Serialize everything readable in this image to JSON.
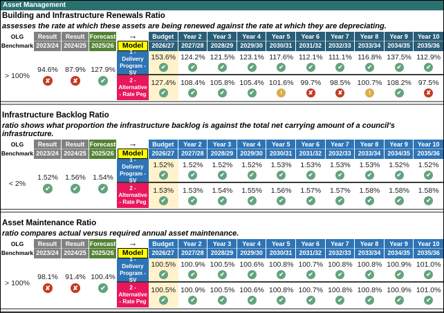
{
  "report": {
    "title": "Asset Management"
  },
  "olg_header": {
    "line1": "OLG",
    "line2": "Benchmark"
  },
  "columns": [
    {
      "label": "Result",
      "year": "2023/24",
      "type": "gray"
    },
    {
      "label": "Result",
      "year": "2024/25",
      "type": "gray"
    },
    {
      "label": "Forecast",
      "year": "2025/26",
      "type": "green"
    },
    {
      "label": "→",
      "year": "Model",
      "type": "model"
    },
    {
      "label": "Budget",
      "year": "2026/27",
      "type": "budget"
    },
    {
      "label": "Year 2",
      "year": "2027/28",
      "type": "year"
    },
    {
      "label": "Year 3",
      "year": "2028/29",
      "type": "year"
    },
    {
      "label": "Year 4",
      "year": "2029/30",
      "type": "year"
    },
    {
      "label": "Year 5",
      "year": "2030/31",
      "type": "year"
    },
    {
      "label": "Year 6",
      "year": "2031/32",
      "type": "year"
    },
    {
      "label": "Year 7",
      "year": "2032/33",
      "type": "year"
    },
    {
      "label": "Year 8",
      "year": "2033/34",
      "type": "year"
    },
    {
      "label": "Year 9",
      "year": "2034/35",
      "type": "year"
    },
    {
      "label": "Year 10",
      "year": "2035/36",
      "type": "year"
    }
  ],
  "icons": {
    "pass": "✔",
    "fail": "✘",
    "warn": "!",
    "arrow": "→"
  },
  "colors": {
    "title_bar": "#2B7170",
    "header_teal": "#2A5E78",
    "header_blue": "#2E74B5",
    "header_gray": "#808080",
    "header_green": "#548235",
    "model_yellow": "#FFFF00",
    "budget_cream": "#FFF2CC",
    "row_blue": "#2E74B5",
    "row_pink": "#E8175D",
    "pass": "#63A37F",
    "fail": "#C33B22",
    "warn": "#DBAD49"
  },
  "sections": [
    {
      "title": "Building and Infrastructure Renewals Ratio",
      "description": "assesses the rate at which these assets are being renewed against the rate at which they are depreciating.",
      "header_theme": "teal",
      "benchmark": "> 100%",
      "actuals": [
        {
          "value": "94.6%",
          "status": "fail"
        },
        {
          "value": "87.9%",
          "status": "fail"
        },
        {
          "value": "127.9%",
          "status": "pass"
        }
      ],
      "rows": [
        {
          "label": "1 - Delivery Program - SV",
          "color": "blue",
          "values": [
            {
              "value": "153.6%",
              "status": "pass"
            },
            {
              "value": "124.2%",
              "status": "pass"
            },
            {
              "value": "121.5%",
              "status": "pass"
            },
            {
              "value": "123.1%",
              "status": "pass"
            },
            {
              "value": "117.6%",
              "status": "pass"
            },
            {
              "value": "112.1%",
              "status": "pass"
            },
            {
              "value": "111.1%",
              "status": "pass"
            },
            {
              "value": "116.8%",
              "status": "pass"
            },
            {
              "value": "137.5%",
              "status": "pass"
            },
            {
              "value": "112.9%",
              "status": "pass"
            }
          ]
        },
        {
          "label": "2 - Alternative - Rate Peg",
          "color": "pink",
          "values": [
            {
              "value": "127.4%",
              "status": "pass"
            },
            {
              "value": "108.4%",
              "status": "pass"
            },
            {
              "value": "105.8%",
              "status": "pass"
            },
            {
              "value": "105.4%",
              "status": "pass"
            },
            {
              "value": "101.6%",
              "status": "warn"
            },
            {
              "value": "99.7%",
              "status": "fail"
            },
            {
              "value": "98.5%",
              "status": "fail"
            },
            {
              "value": "100.7%",
              "status": "warn"
            },
            {
              "value": "108.2%",
              "status": "pass"
            },
            {
              "value": "97.5%",
              "status": "fail"
            }
          ]
        }
      ]
    },
    {
      "title": "Infrastructure Backlog Ratio",
      "description": "ratio shows what proportion the infrastructure backlog is against the total net carrying amount of a council's infrastructure.",
      "header_theme": "blue",
      "benchmark": "< 2%",
      "actuals": [
        {
          "value": "1.52%",
          "status": "pass"
        },
        {
          "value": "1.56%",
          "status": "pass"
        },
        {
          "value": "1.54%",
          "status": "pass"
        }
      ],
      "rows": [
        {
          "label": "1 - Delivery Program - SV",
          "color": "blue",
          "values": [
            {
              "value": "1.52%",
              "status": "pass"
            },
            {
              "value": "1.52%",
              "status": "pass"
            },
            {
              "value": "1.52%",
              "status": "pass"
            },
            {
              "value": "1.52%",
              "status": "pass"
            },
            {
              "value": "1.53%",
              "status": "pass"
            },
            {
              "value": "1.53%",
              "status": "pass"
            },
            {
              "value": "1.53%",
              "status": "pass"
            },
            {
              "value": "1.53%",
              "status": "pass"
            },
            {
              "value": "1.52%",
              "status": "pass"
            },
            {
              "value": "1.52%",
              "status": "pass"
            }
          ]
        },
        {
          "label": "2 - Alternative - Rate Peg",
          "color": "pink",
          "values": [
            {
              "value": "1.53%",
              "status": "pass"
            },
            {
              "value": "1.53%",
              "status": "pass"
            },
            {
              "value": "1.54%",
              "status": "pass"
            },
            {
              "value": "1.55%",
              "status": "pass"
            },
            {
              "value": "1.56%",
              "status": "pass"
            },
            {
              "value": "1.57%",
              "status": "pass"
            },
            {
              "value": "1.57%",
              "status": "pass"
            },
            {
              "value": "1.58%",
              "status": "pass"
            },
            {
              "value": "1.58%",
              "status": "pass"
            },
            {
              "value": "1.58%",
              "status": "pass"
            }
          ]
        }
      ]
    },
    {
      "title": "Asset Maintenance Ratio",
      "description": "ratio compares actual versus required annual asset maintenance.",
      "header_theme": "blue",
      "benchmark": "> 100%",
      "actuals": [
        {
          "value": "98.1%",
          "status": "fail"
        },
        {
          "value": "91.4%",
          "status": "fail"
        },
        {
          "value": "100.4%",
          "status": "pass"
        }
      ],
      "rows": [
        {
          "label": "1 - Delivery Program - SV",
          "color": "blue",
          "values": [
            {
              "value": "100.5%",
              "status": "pass"
            },
            {
              "value": "100.9%",
              "status": "pass"
            },
            {
              "value": "100.5%",
              "status": "pass"
            },
            {
              "value": "100.6%",
              "status": "pass"
            },
            {
              "value": "100.8%",
              "status": "pass"
            },
            {
              "value": "100.7%",
              "status": "pass"
            },
            {
              "value": "100.8%",
              "status": "pass"
            },
            {
              "value": "100.8%",
              "status": "pass"
            },
            {
              "value": "100.9%",
              "status": "pass"
            },
            {
              "value": "101.0%",
              "status": "pass"
            }
          ]
        },
        {
          "label": "2 - Alternative - Rate Peg",
          "color": "pink",
          "values": [
            {
              "value": "100.5%",
              "status": "pass"
            },
            {
              "value": "100.9%",
              "status": "pass"
            },
            {
              "value": "100.5%",
              "status": "pass"
            },
            {
              "value": "100.6%",
              "status": "pass"
            },
            {
              "value": "100.8%",
              "status": "pass"
            },
            {
              "value": "100.7%",
              "status": "pass"
            },
            {
              "value": "100.8%",
              "status": "pass"
            },
            {
              "value": "100.8%",
              "status": "pass"
            },
            {
              "value": "100.9%",
              "status": "pass"
            },
            {
              "value": "101.0%",
              "status": "pass"
            }
          ]
        }
      ]
    }
  ]
}
